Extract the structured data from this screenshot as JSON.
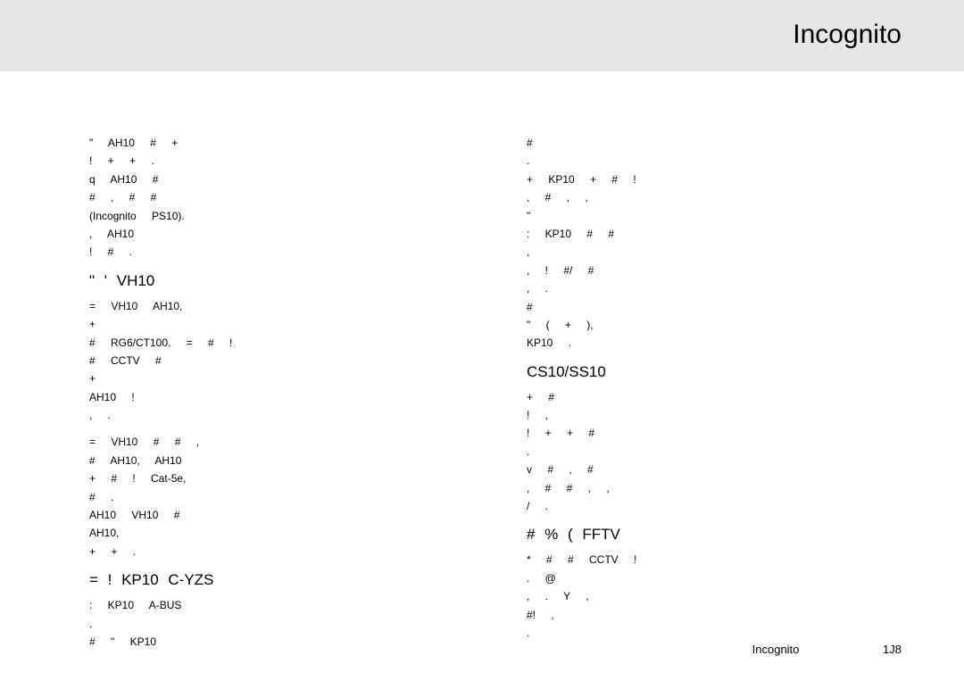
{
  "header": {
    "title": "Incognito"
  },
  "left": {
    "p1": "\" AH10 # +\n! + + .\nq AH10 #\n# , # #\n(Incognito PS10).\n, AH10\n! # .",
    "h1": "\"   '   VH10",
    "p2": "= VH10 AH10,\n+\n# RG6/CT100. = # !\n# CCTV #\n+\nAH10 !\n, .",
    "p3": "= VH10 # # ,\n# AH10, AH10\n+ # ! Cat-5e,\n# .\nAH10 VH10 #\nAH10,\n+ + .",
    "h2": "=   !   KP10 C-YZS",
    "p4": ": KP10 A-BUS\n.\n# \" KP10"
  },
  "right": {
    "p1": "#\n.\n+ KP10 + # !\n, # , ,\n\"\n: KP10 # #\n,\n, ! #/ #\n, .\n#\n\" ( + ),\nKP10 .",
    "h1": "CS10/SS10",
    "p2": "+ #\n! ,\n! + + #\n.\nv # , #\n, # # , ,\n/ .",
    "h2": "#                             %                  (\nFFTV",
    "p3": "* # # CCTV !\n. @\n, . Y ,\n#! ,\n."
  },
  "footer": {
    "left": "Incognito",
    "right": "1J8"
  }
}
